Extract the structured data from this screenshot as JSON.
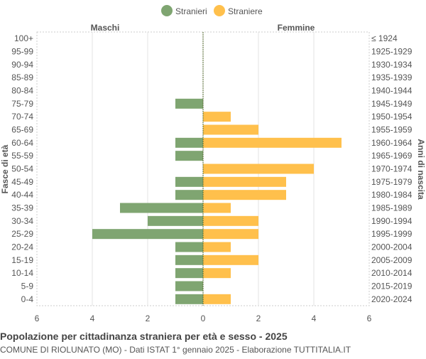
{
  "chart_data": {
    "type": "bar",
    "orientation": "horizontal-pyramid",
    "title": "Popolazione per cittadinanza straniera per età e sesso - 2025",
    "subtitle": "COMUNE DI RIOLUNATO (MO) - Dati ISTAT 1° gennaio 2025 - Elaborazione TUTTITALIA.IT",
    "left_header": "Maschi",
    "right_header": "Femmine",
    "ylabel_left": "Fasce di età",
    "ylabel_right": "Anni di nascita",
    "xlim": [
      -6,
      6
    ],
    "xticks": [
      "6",
      "4",
      "2",
      "0",
      "2",
      "4",
      "6"
    ],
    "categories": [
      "100+",
      "95-99",
      "90-94",
      "85-89",
      "80-84",
      "75-79",
      "70-74",
      "65-69",
      "60-64",
      "55-59",
      "50-54",
      "45-49",
      "40-44",
      "35-39",
      "30-34",
      "25-29",
      "20-24",
      "15-19",
      "10-14",
      "5-9",
      "0-4"
    ],
    "birth_years": [
      "≤ 1924",
      "1925-1929",
      "1930-1934",
      "1935-1939",
      "1940-1944",
      "1945-1949",
      "1950-1954",
      "1955-1959",
      "1960-1964",
      "1965-1969",
      "1970-1974",
      "1975-1979",
      "1980-1984",
      "1985-1989",
      "1990-1994",
      "1995-1999",
      "2000-2004",
      "2005-2009",
      "2010-2014",
      "2015-2019",
      "2020-2024"
    ],
    "series": [
      {
        "name": "Stranieri",
        "color": "#7fa571",
        "values": [
          0,
          0,
          0,
          0,
          0,
          1,
          0,
          0,
          1,
          1,
          0,
          1,
          1,
          3,
          2,
          4,
          1,
          1,
          1,
          1,
          1
        ]
      },
      {
        "name": "Straniere",
        "color": "#ffc04c",
        "values": [
          0,
          0,
          0,
          0,
          0,
          0,
          1,
          2,
          5,
          0,
          4,
          3,
          3,
          1,
          2,
          2,
          1,
          2,
          1,
          0,
          1
        ]
      }
    ],
    "grid": true,
    "legend": "top-center"
  }
}
